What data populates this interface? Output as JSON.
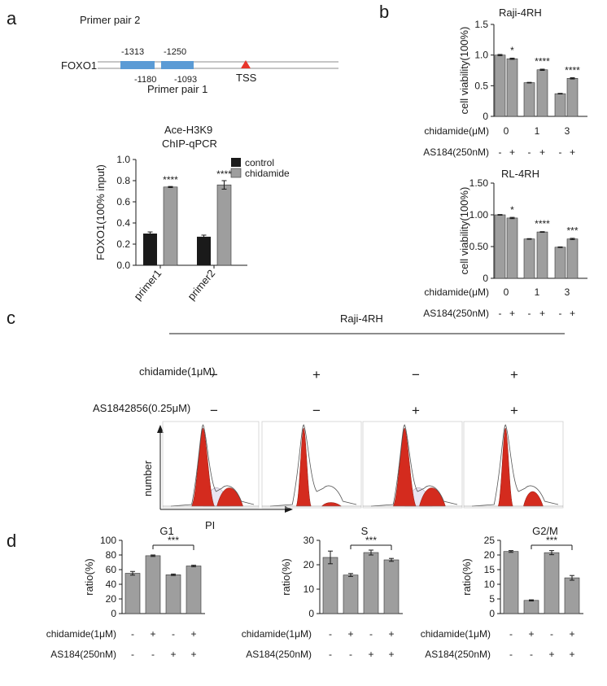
{
  "figure": {
    "panel_labels": {
      "a": "a",
      "b": "b",
      "c": "c",
      "d": "d"
    },
    "colors": {
      "dark_bar": "#1a1a1a",
      "grey_bar": "#9e9e9e",
      "gene_box": "#5b9bd5",
      "tss": "#e8352b",
      "peak_red": "#d42b1e",
      "peak_fill": "#e9e4f0"
    }
  },
  "panel_a": {
    "gene": "FOXO1",
    "primer_pair_2": "Primer pair 2",
    "primer_pair_1": "Primer pair 1",
    "pos_top_1": "-1313",
    "pos_top_2": "-1250",
    "pos_bottom_1": "-1180",
    "pos_bottom_2": "-1093",
    "tss": "TSS",
    "chart_title_1": "Ace-H3K9",
    "chart_title_2": "ChIP-qPCR",
    "legend_control": "control",
    "legend_chidamide": "chidamide"
  },
  "panel_b": {
    "row_label_chid": "chidamide(μM)",
    "row_label_as": "AS184(250nM)",
    "doses": [
      "0",
      "1",
      "3"
    ],
    "signs": [
      "-",
      "+",
      "-",
      "+",
      "-",
      "+"
    ]
  },
  "panel_c": {
    "cell_line": "Raji-4RH",
    "row_chid_label": "chidamide(1μM)",
    "row_as_label": "AS1842856(0.25μM)",
    "row_chid_signs": [
      "−",
      "+",
      "−",
      "+"
    ],
    "row_as_signs": [
      "−",
      "−",
      "+",
      "+"
    ],
    "y_axis": "number",
    "x_axis": "PI"
  },
  "panel_d": {
    "row_chid_label": "chidamide(1μM)",
    "row_as_label": "AS184(250nM)",
    "row_chid_signs": [
      "-",
      "+",
      "-",
      "+"
    ],
    "row_as_signs": [
      "-",
      "-",
      "+",
      "+"
    ]
  },
  "chart_data": [
    {
      "id": "a_chip",
      "type": "bar",
      "categories": [
        "primer1",
        "primer2"
      ],
      "series": [
        {
          "name": "control",
          "values": [
            0.3,
            0.27
          ],
          "errors": [
            0.015,
            0.015
          ]
        },
        {
          "name": "chidamide",
          "values": [
            0.74,
            0.76
          ],
          "errors": [
            0.005,
            0.04
          ]
        }
      ],
      "significance": [
        "****",
        "****"
      ],
      "ylabel": "FOXO1(100% input)",
      "ylim": [
        0,
        1.0
      ],
      "yticks": [
        "0.0",
        "0.2",
        "0.4",
        "0.6",
        "0.8",
        "1.0"
      ]
    },
    {
      "id": "b_raji",
      "type": "bar",
      "title": "Raji-4RH",
      "values": [
        1.0,
        0.94,
        0.55,
        0.76,
        0.37,
        0.62
      ],
      "errors": [
        0.01,
        0.01,
        0.005,
        0.01,
        0.005,
        0.01
      ],
      "significance": [
        "*",
        "****",
        "****"
      ],
      "ylabel": "cell viability(100%)",
      "ylim": [
        0,
        1.5
      ],
      "yticks": [
        "0",
        "0.5",
        "1.0",
        "1.5"
      ]
    },
    {
      "id": "b_rl",
      "type": "bar",
      "title": "RL-4RH",
      "values": [
        1.0,
        0.95,
        0.62,
        0.73,
        0.49,
        0.62
      ],
      "errors": [
        0.005,
        0.01,
        0.005,
        0.005,
        0.005,
        0.01
      ],
      "significance": [
        "*",
        "****",
        "***"
      ],
      "ylabel": "cell viability(100%)",
      "ylim": [
        0,
        1.5
      ],
      "yticks": [
        "0",
        "0.50",
        "1.00",
        "1.50"
      ]
    },
    {
      "id": "d_g1",
      "type": "bar",
      "title": "G1",
      "values": [
        55,
        79,
        53,
        65
      ],
      "errors": [
        2.5,
        1,
        1,
        1
      ],
      "significance": "***",
      "ylabel": "ratio(%)",
      "ylim": [
        0,
        100
      ],
      "yticks": [
        "0",
        "20",
        "40",
        "60",
        "80",
        "100"
      ]
    },
    {
      "id": "d_s",
      "type": "bar",
      "title": "S",
      "values": [
        23,
        15.8,
        25,
        22
      ],
      "errors": [
        2.6,
        0.6,
        1,
        0.6
      ],
      "significance": "***",
      "ylabel": "ratio(%)",
      "ylim": [
        0,
        30
      ],
      "yticks": [
        "0",
        "10",
        "20",
        "30"
      ]
    },
    {
      "id": "d_g2m",
      "type": "bar",
      "title": "G2/M",
      "values": [
        21.2,
        4.5,
        20.8,
        12.2
      ],
      "errors": [
        0.3,
        0.2,
        0.7,
        0.8
      ],
      "significance": "***",
      "ylabel": "ratio(%)",
      "ylim": [
        0,
        25
      ],
      "yticks": [
        "0",
        "5",
        "10",
        "15",
        "20",
        "25"
      ]
    }
  ]
}
